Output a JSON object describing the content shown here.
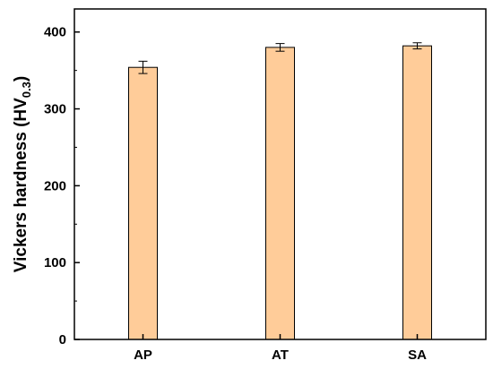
{
  "chart_data": {
    "type": "bar",
    "title": "",
    "xlabel": "",
    "ylabel": "Vickers hardness (HV",
    "ylabel_subscript": "0.3",
    "ylabel_close": ")",
    "categories": [
      "AP",
      "AT",
      "SA"
    ],
    "values": [
      354,
      380,
      382
    ],
    "errors": [
      8,
      5,
      4
    ],
    "ylim": [
      0,
      430
    ],
    "yticks": [
      0,
      100,
      200,
      300,
      400
    ],
    "grid": false,
    "legend": "none",
    "colors": {
      "bar_fill": "#FFCC99",
      "bar_stroke": "#000000",
      "axis": "#000000"
    }
  }
}
